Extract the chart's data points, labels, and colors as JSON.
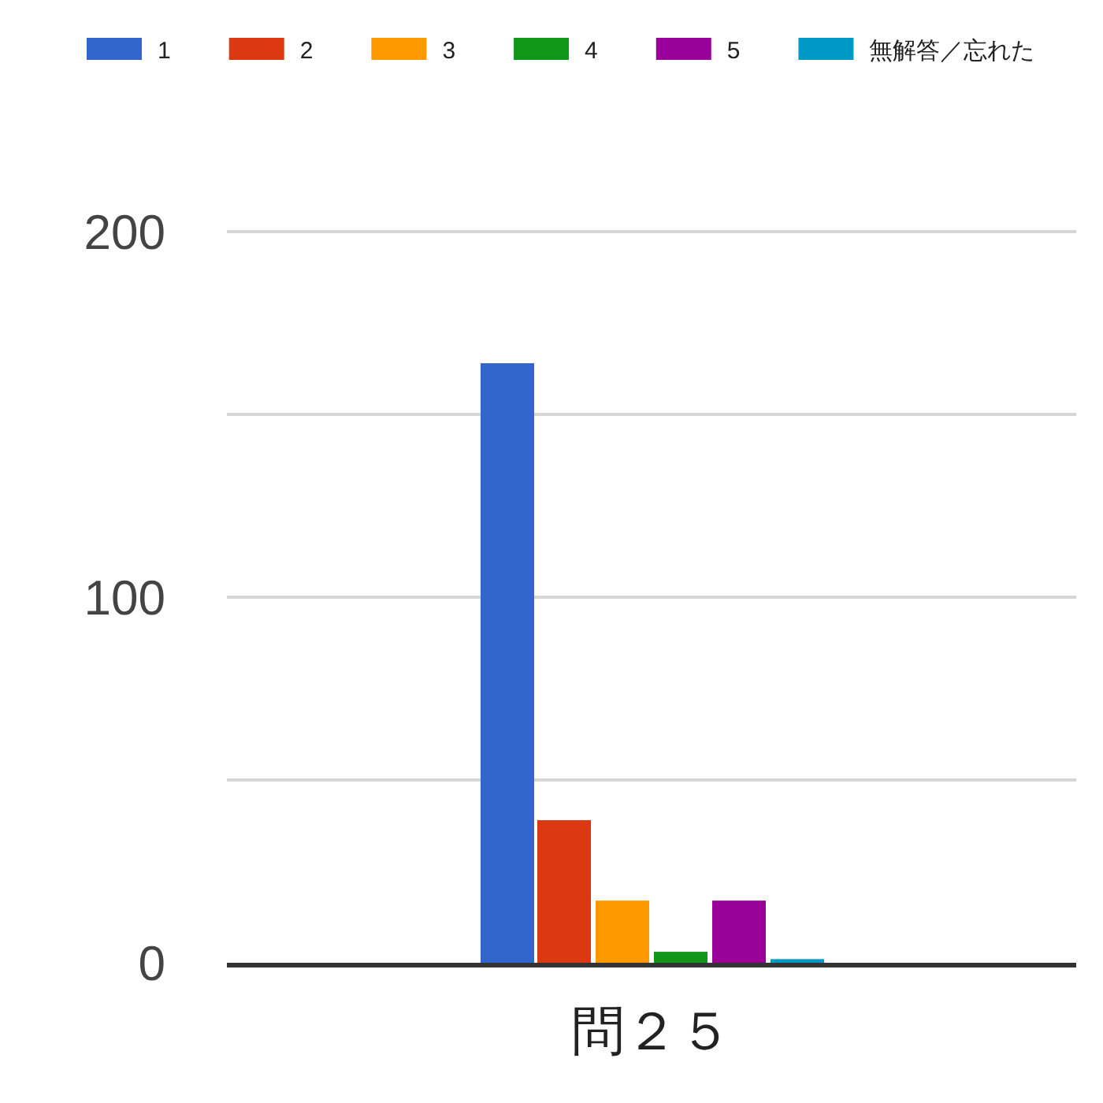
{
  "chart_data": {
    "type": "bar",
    "categories": [
      "問２５"
    ],
    "series": [
      {
        "name": "1",
        "color": "#3366cc",
        "values": [
          164
        ]
      },
      {
        "name": "2",
        "color": "#dc3912",
        "values": [
          39
        ]
      },
      {
        "name": "3",
        "color": "#ff9900",
        "values": [
          17
        ]
      },
      {
        "name": "4",
        "color": "#109618",
        "values": [
          3
        ]
      },
      {
        "name": "5",
        "color": "#990099",
        "values": [
          17
        ]
      },
      {
        "name": "無解答／忘れた",
        "color": "#0099c6",
        "values": [
          1
        ]
      }
    ],
    "ylim": [
      0,
      200
    ],
    "yticks": [
      0,
      {
        "value": 50,
        "label": null
      },
      100,
      {
        "value": 150,
        "label": null
      },
      200
    ],
    "grid": true,
    "legend": "top"
  }
}
